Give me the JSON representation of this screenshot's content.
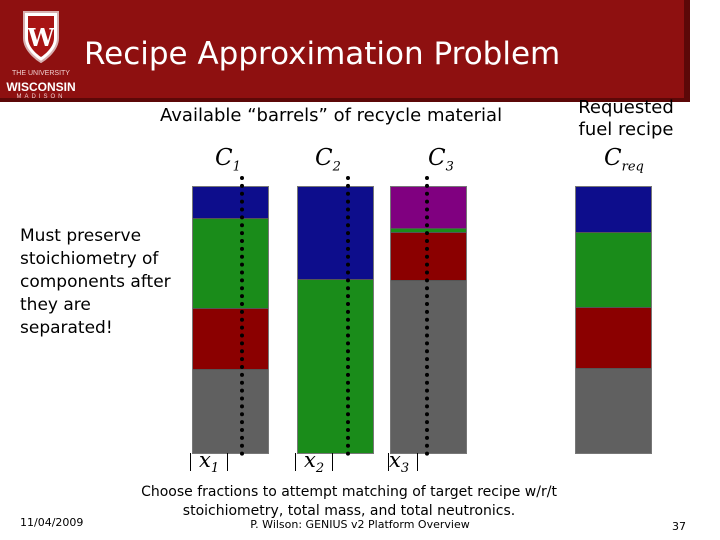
{
  "slide": {
    "title": "Recipe Approximation Problem",
    "subtitle": "Available “barrels” of recycle material",
    "requested": "Requested fuel recipe",
    "side_note": "Must preserve stoichiometry of components after they are separated!",
    "bottom_note": "Choose fractions to attempt matching of target recipe w/r/t stoichiometry, total mass, and total neutronics.",
    "date": "11/04/2009",
    "footer": "P. Wilson: GENIUS v2 Platform Overview",
    "page": "37"
  },
  "logo": {
    "line1": "THE UNIVERSITY",
    "line2": "WISCONSIN",
    "line3": "MADISON"
  },
  "barrels": [
    {
      "label": "C",
      "sub": "1",
      "x_label": "x",
      "x_sub": "1",
      "segments": [
        {
          "color": "#0d0d8c",
          "frac": 0.115
        },
        {
          "color": "#1a8c1a",
          "frac": 0.34
        },
        {
          "color": "#8b0000",
          "frac": 0.23
        },
        {
          "color": "#606060",
          "frac": 0.315
        }
      ]
    },
    {
      "label": "C",
      "sub": "2",
      "x_label": "x",
      "x_sub": "2",
      "segments": [
        {
          "color": "#0d0d8c",
          "frac": 0.345
        },
        {
          "color": "#1a8c1a",
          "frac": 0.655
        }
      ]
    },
    {
      "label": "C",
      "sub": "3",
      "x_label": "x",
      "x_sub": "3",
      "segments": [
        {
          "color": "#800080",
          "frac": 0.155
        },
        {
          "color": "#1a8c1a",
          "frac": 0.015
        },
        {
          "color": "#8b0000",
          "frac": 0.18
        },
        {
          "color": "#606060",
          "frac": 0.65
        }
      ]
    }
  ],
  "requested_barrel": {
    "label": "C",
    "sub": "req",
    "segments": [
      {
        "color": "#0d0d8c",
        "frac": 0.17
      },
      {
        "color": "#1a8c1a",
        "frac": 0.28
      },
      {
        "color": "#8b0000",
        "frac": 0.23
      },
      {
        "color": "#606060",
        "frac": 0.32
      }
    ]
  }
}
